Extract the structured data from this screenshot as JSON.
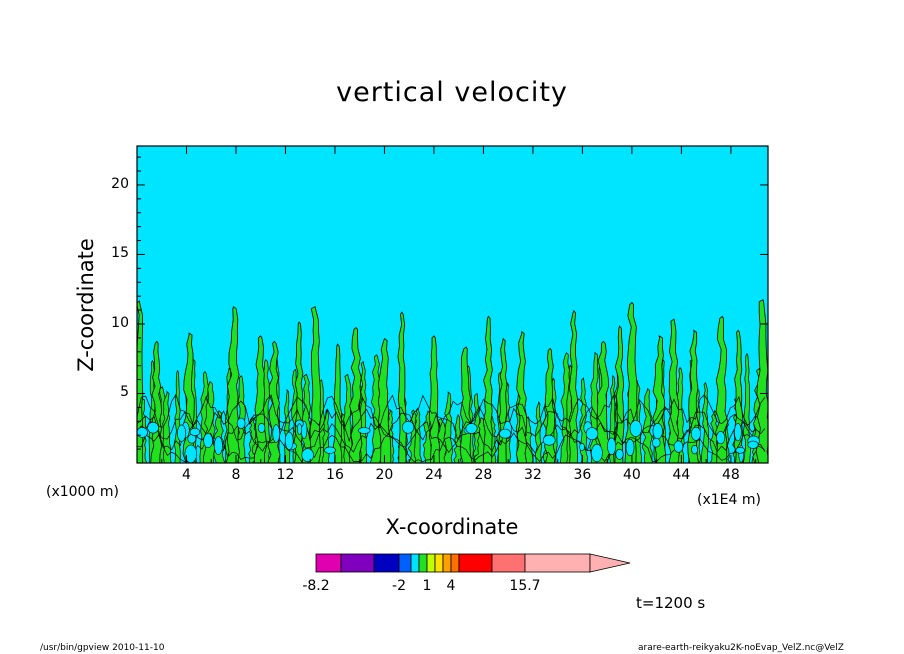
{
  "chart_data": {
    "type": "heatmap",
    "title": "vertical velocity",
    "xlabel": "X-coordinate",
    "ylabel": "Z-coordinate",
    "x_unit_label": "(x1000 m)",
    "x_scale_label": "(x1E4 m)",
    "x_ticks": [
      "4",
      "8",
      "12",
      "16",
      "20",
      "24",
      "28",
      "32",
      "36",
      "40",
      "44",
      "48"
    ],
    "x_tick_values": [
      4,
      8,
      12,
      16,
      20,
      24,
      28,
      32,
      36,
      40,
      44,
      48
    ],
    "xlim": [
      0,
      51
    ],
    "y_ticks": [
      "5",
      "10",
      "15",
      "20"
    ],
    "y_tick_values": [
      5,
      10,
      15,
      20
    ],
    "ylim": [
      0,
      22.8
    ],
    "background_color": "#00e5ff",
    "colorbar": {
      "colors": [
        "#e000b0",
        "#8000c0",
        "#0000c0",
        "#0060ff",
        "#00e0ff",
        "#20e020",
        "#c0ff00",
        "#ffe000",
        "#ffa000",
        "#ff7000",
        "#ff0000",
        "#ff7070",
        "#ffb0b0"
      ],
      "labels": [
        "-8.2",
        "-2",
        "1",
        "4",
        "15.7"
      ]
    },
    "plumes": [
      {
        "x": 0.2,
        "top": 11.5
      },
      {
        "x": 1.6,
        "top": 8.6
      },
      {
        "x": 4.2,
        "top": 9.2
      },
      {
        "x": 7.8,
        "top": 11.1
      },
      {
        "x": 10.0,
        "top": 9.0
      },
      {
        "x": 11.1,
        "top": 8.6
      },
      {
        "x": 13.1,
        "top": 10.0
      },
      {
        "x": 14.4,
        "top": 11.1
      },
      {
        "x": 16.2,
        "top": 8.4
      },
      {
        "x": 17.7,
        "top": 9.6
      },
      {
        "x": 20.0,
        "top": 8.8
      },
      {
        "x": 21.4,
        "top": 10.7
      },
      {
        "x": 24.0,
        "top": 9.0
      },
      {
        "x": 26.6,
        "top": 8.2
      },
      {
        "x": 28.4,
        "top": 10.4
      },
      {
        "x": 29.6,
        "top": 8.8
      },
      {
        "x": 31.1,
        "top": 9.3
      },
      {
        "x": 33.4,
        "top": 8.1
      },
      {
        "x": 35.3,
        "top": 10.8
      },
      {
        "x": 37.7,
        "top": 8.6
      },
      {
        "x": 39.0,
        "top": 9.7
      },
      {
        "x": 40.0,
        "top": 11.4
      },
      {
        "x": 42.2,
        "top": 9.0
      },
      {
        "x": 43.4,
        "top": 10.2
      },
      {
        "x": 45.0,
        "top": 9.4
      },
      {
        "x": 47.3,
        "top": 10.4
      },
      {
        "x": 48.6,
        "top": 9.4
      },
      {
        "x": 50.6,
        "top": 11.6
      }
    ]
  },
  "time_label": "t=1200 s",
  "footer_left": "/usr/bin/gpview   2010-11-10",
  "footer_right": "arare-earth-reikyaku2K-noEvap_VelZ.nc@VelZ"
}
